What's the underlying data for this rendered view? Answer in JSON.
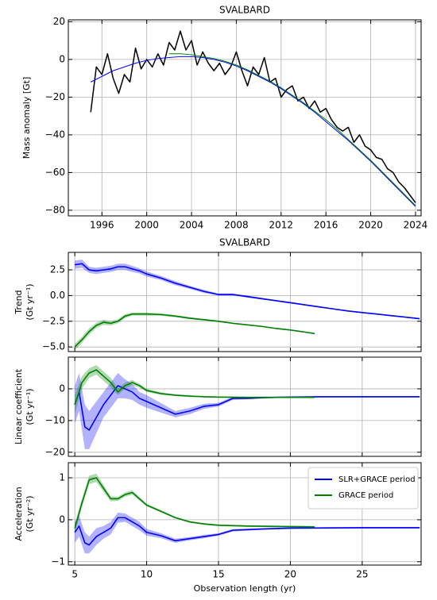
{
  "chart_data": [
    {
      "type": "line",
      "title": "SVALBARD",
      "ylabel": [
        "Mass anomaly [Gt]"
      ],
      "xlim": [
        1993.0,
        2024.5
      ],
      "xticks": [
        1996,
        2000,
        2004,
        2008,
        2012,
        2016,
        2020,
        2024
      ],
      "ylim": [
        -83,
        21
      ],
      "yticks": [
        20,
        0,
        {
          "value": -20,
          "label": "−20"
        },
        {
          "value": -40,
          "label": "−40"
        },
        {
          "value": -60,
          "label": "−60"
        },
        {
          "value": -80,
          "label": "−80"
        }
      ],
      "grid": true,
      "series": [
        {
          "color": "#000000",
          "x": [
            1995,
            1995.5,
            1996,
            1996.5,
            1997,
            1997.5,
            1998,
            1998.5,
            1999,
            1999.5,
            2000,
            2000.5,
            2001,
            2001.5,
            2002,
            2002.5,
            2003,
            2003.5,
            2004,
            2004.5,
            2005,
            2005.5,
            2006,
            2006.5,
            2007,
            2007.5,
            2008,
            2008.5,
            2009,
            2009.5,
            2010,
            2010.5,
            2011,
            2011.5,
            2012,
            2012.5,
            2013,
            2013.5,
            2014,
            2014.5,
            2015,
            2015.5,
            2016,
            2016.5,
            2017,
            2017.5,
            2018,
            2018.5,
            2019,
            2019.5,
            2020,
            2020.5,
            2021,
            2021.5,
            2022,
            2022.5,
            2023,
            2023.5,
            2024
          ],
          "values": [
            -28,
            -4,
            -8,
            3,
            -10,
            -18,
            -8,
            -12,
            6,
            -5,
            0,
            -4,
            3,
            -3,
            9,
            5,
            15,
            5,
            10,
            -3,
            4,
            -2,
            -6,
            -2,
            -8,
            -4,
            4,
            -6,
            -14,
            -4,
            -8,
            1,
            -12,
            -10,
            -20,
            -16,
            -14,
            -22,
            -20,
            -26,
            -22,
            -28,
            -26,
            -32,
            -36,
            -38,
            -36,
            -44,
            -40,
            -46,
            -48,
            -52,
            -53,
            -58,
            -60,
            -65,
            -68,
            -72,
            -76
          ]
        },
        {
          "color": "#0000ff",
          "x": [
            1995,
            1996,
            1997,
            1998,
            1999,
            2000,
            2001,
            2002,
            2003,
            2004,
            2005,
            2006,
            2007,
            2008,
            2009,
            2010,
            2011,
            2012,
            2013,
            2014,
            2015,
            2016,
            2017,
            2018,
            2019,
            2020,
            2021,
            2022,
            2023,
            2024
          ],
          "values": [
            -12,
            -9,
            -6,
            -4,
            -2,
            -0.5,
            0.5,
            1,
            1.5,
            1.5,
            1,
            0,
            -1.5,
            -3.5,
            -6,
            -9,
            -12,
            -15.5,
            -19.5,
            -23.5,
            -28,
            -33,
            -38,
            -43,
            -48.5,
            -54,
            -60,
            -66,
            -72,
            -78
          ]
        },
        {
          "color": "#008000",
          "x": [
            2002,
            2003,
            2004,
            2005,
            2006,
            2007,
            2008,
            2009,
            2010,
            2011,
            2012,
            2013,
            2014,
            2015,
            2016,
            2017,
            2018,
            2019,
            2020,
            2021,
            2022,
            2023,
            2024
          ],
          "values": [
            3,
            3,
            2.5,
            1.5,
            0.5,
            -1,
            -3,
            -5.5,
            -8.5,
            -11.5,
            -15,
            -19,
            -23,
            -27.5,
            -32,
            -37,
            -42.5,
            -48,
            -53.5,
            -59.5,
            -65.5,
            -71.5,
            -77.5
          ]
        }
      ]
    },
    {
      "type": "line",
      "title": "SVALBARD",
      "ylabel": [
        "Trend",
        "(Gt yr⁻¹)"
      ],
      "xlim": [
        4.55,
        29.1
      ],
      "ylim": [
        -5.45,
        4.2
      ],
      "yticks": [
        2.5,
        {
          "value": 0,
          "label": "0.0"
        },
        {
          "value": -2.5,
          "label": "−2.5"
        },
        {
          "value": -5,
          "label": "−5.0"
        }
      ],
      "grid": true,
      "series": [
        {
          "color": "#0000ff",
          "x": [
            5,
            5.5,
            6,
            6.5,
            7,
            7.5,
            8,
            8.5,
            9,
            9.5,
            10,
            11,
            12,
            13,
            14,
            15,
            16,
            17,
            18,
            19,
            20,
            21,
            22,
            23,
            24,
            25,
            26,
            27,
            28,
            29
          ],
          "values": [
            3.0,
            3.1,
            2.5,
            2.4,
            2.5,
            2.6,
            2.8,
            2.8,
            2.6,
            2.4,
            2.1,
            1.7,
            1.2,
            0.8,
            0.4,
            0.1,
            0.1,
            -0.1,
            -0.3,
            -0.5,
            -0.7,
            -0.9,
            -1.1,
            -1.3,
            -1.5,
            -1.65,
            -1.8,
            -1.95,
            -2.1,
            -2.25
          ],
          "errors": [
            0.4,
            0.4,
            0.3,
            0.3,
            0.3,
            0.3,
            0.3,
            0.3,
            0.3,
            0.25,
            0.25,
            0.2,
            0.2,
            0.15,
            0.15,
            0.1,
            0.1,
            0.1,
            0.08,
            0.08,
            0.08,
            0.06,
            0.06,
            0.06,
            0.05,
            0.05,
            0.05,
            0.05,
            0.05,
            0.05
          ]
        },
        {
          "color": "#008000",
          "x": [
            5,
            5.5,
            6,
            6.5,
            7,
            7.5,
            8,
            8.5,
            9,
            9.5,
            10,
            11,
            12,
            13,
            14,
            15,
            16,
            17,
            18,
            19,
            20,
            21,
            21.7
          ],
          "values": [
            -5.0,
            -4.3,
            -3.5,
            -2.9,
            -2.6,
            -2.7,
            -2.5,
            -2.0,
            -1.8,
            -1.8,
            -1.8,
            -1.85,
            -2.0,
            -2.2,
            -2.35,
            -2.5,
            -2.7,
            -2.85,
            -3.0,
            -3.2,
            -3.35,
            -3.55,
            -3.7
          ],
          "errors": [
            0.3,
            0.3,
            0.3,
            0.25,
            0.25,
            0.2,
            0.2,
            0.2,
            0.15,
            0.15,
            0.15,
            0.12,
            0.1,
            0.1,
            0.08,
            0.08,
            0.06,
            0.06,
            0.05,
            0.05,
            0.05,
            0.05,
            0.05
          ]
        }
      ]
    },
    {
      "type": "line",
      "ylabel": [
        "Linear coefficient",
        "(Gt yr⁻¹)"
      ],
      "xlim": [
        4.55,
        29.1
      ],
      "ylim": [
        -21.3,
        10
      ],
      "yticks": [
        0,
        {
          "value": -10,
          "label": "−10"
        },
        {
          "value": -20,
          "label": "−20"
        }
      ],
      "grid": true,
      "series": [
        {
          "color": "#0000ff",
          "x": [
            5,
            5.3,
            5.7,
            6,
            6.5,
            7,
            7.5,
            8,
            8.5,
            9,
            9.5,
            10,
            11,
            12,
            13,
            14,
            15,
            16,
            17,
            18,
            19,
            20,
            22,
            25,
            29
          ],
          "values": [
            -5,
            -1,
            -12,
            -13,
            -9,
            -5,
            -2,
            1,
            0,
            -1,
            -3,
            -4,
            -6,
            -8,
            -7,
            -5.5,
            -5,
            -3,
            -3,
            -2.8,
            -2.7,
            -2.6,
            -2.5,
            -2.5,
            -2.5
          ],
          "errors": [
            6,
            6,
            7,
            6,
            5,
            4,
            4,
            4,
            3,
            2.5,
            2,
            2,
            1.5,
            1,
            1,
            0.8,
            0.6,
            0.5,
            0.3,
            0.3,
            0.2,
            0.2,
            0.2,
            0.2,
            0.2
          ]
        },
        {
          "color": "#008000",
          "x": [
            5,
            5.5,
            6,
            6.5,
            7,
            7.5,
            8,
            8.5,
            9,
            9.5,
            10,
            11,
            12,
            13,
            14,
            15,
            17,
            19,
            21.7
          ],
          "values": [
            -5,
            2,
            5,
            6,
            4,
            2,
            -1,
            1,
            2,
            1,
            -0.5,
            -1.5,
            -2,
            -2.3,
            -2.5,
            -2.6,
            -2.7,
            -2.7,
            -2.7
          ],
          "errors": [
            3,
            2,
            1.5,
            1.5,
            1.5,
            1.5,
            1,
            1,
            0.8,
            0.6,
            0.5,
            0.4,
            0.3,
            0.3,
            0.2,
            0.2,
            0.2,
            0.2,
            0.2
          ]
        }
      ]
    },
    {
      "type": "line",
      "ylabel": [
        "Acceleration",
        "(Gt yr⁻²)"
      ],
      "xlabel": "Observation length (yr)",
      "xlim": [
        4.55,
        29.1
      ],
      "xticks": [
        5,
        10,
        15,
        20,
        25
      ],
      "ylim": [
        -1.08,
        1.36
      ],
      "yticks": [
        1,
        0,
        {
          "value": -1,
          "label": "−1"
        }
      ],
      "grid": true,
      "legend": "upper right",
      "series": [
        {
          "name": "SLR+GRACE period",
          "color": "#0000ff",
          "x": [
            5,
            5.3,
            5.7,
            6,
            6.5,
            7,
            7.5,
            8,
            8.5,
            9,
            9.5,
            10,
            11,
            12,
            13,
            14,
            15,
            16,
            18,
            20,
            25,
            29
          ],
          "values": [
            -0.3,
            -0.15,
            -0.55,
            -0.6,
            -0.4,
            -0.3,
            -0.2,
            0.05,
            0.05,
            -0.05,
            -0.15,
            -0.3,
            -0.38,
            -0.5,
            -0.45,
            -0.4,
            -0.35,
            -0.25,
            -0.22,
            -0.2,
            -0.19,
            -0.19
          ],
          "errors": [
            0.25,
            0.25,
            0.25,
            0.2,
            0.2,
            0.15,
            0.15,
            0.12,
            0.1,
            0.1,
            0.1,
            0.08,
            0.06,
            0.05,
            0.04,
            0.04,
            0.03,
            0.03,
            0.02,
            0.02,
            0.02,
            0.02
          ]
        },
        {
          "name": "GRACE period",
          "color": "#008000",
          "x": [
            5,
            5.5,
            6,
            6.5,
            7,
            7.5,
            8,
            8.5,
            9,
            9.5,
            10,
            11,
            12,
            13,
            14,
            15,
            17,
            19,
            21.7
          ],
          "values": [
            -0.2,
            0.4,
            0.95,
            1.0,
            0.75,
            0.5,
            0.5,
            0.6,
            0.65,
            0.5,
            0.35,
            0.2,
            0.05,
            -0.05,
            -0.1,
            -0.13,
            -0.15,
            -0.16,
            -0.17
          ],
          "errors": [
            0.12,
            0.1,
            0.1,
            0.1,
            0.08,
            0.06,
            0.05,
            0.05,
            0.05,
            0.04,
            0.03,
            0.03,
            0.02,
            0.02,
            0.02,
            0.02,
            0.02,
            0.02,
            0.02
          ]
        }
      ]
    }
  ]
}
